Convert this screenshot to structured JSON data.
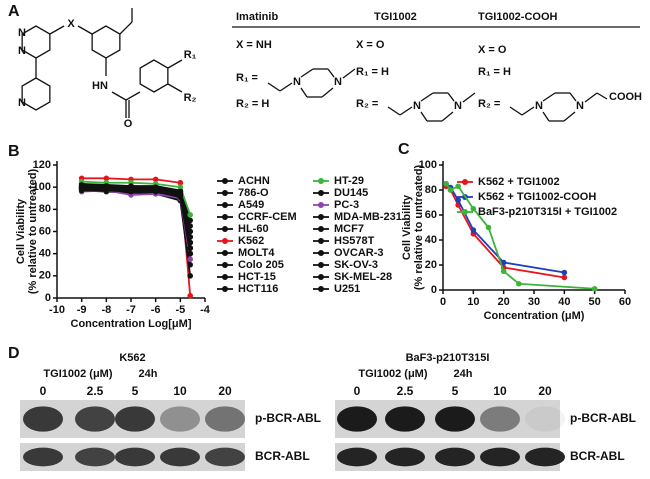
{
  "panel_labels": [
    "A",
    "B",
    "C",
    "D"
  ],
  "panel_a": {
    "scaffold": {
      "x": "X",
      "r1": "R₁",
      "r2": "R₂",
      "hn": "HN",
      "o": "O",
      "n_pyrimidine_1": "N",
      "n_pyrimidine_2": "N",
      "n_pyridine": "N"
    },
    "compounds": [
      {
        "name": "Imatinib",
        "x": "X = NH",
        "r1": "R₁ =",
        "r2": "R₂ = H",
        "atoms": [
          "N",
          "N"
        ]
      },
      {
        "name": "TGI1002",
        "x": "X = O",
        "r1": "R₁ = H",
        "r2": "R₂ =",
        "atoms": [
          "N",
          "N"
        ]
      },
      {
        "name": "TGI1002-COOH",
        "x": "X = O",
        "r1": "R₁ = H",
        "r2": "R₂ =",
        "atoms": [
          "N",
          "N",
          "COOH"
        ]
      }
    ]
  },
  "chart_data": [
    {
      "type": "line",
      "x_label": "Concentration Log[μM]",
      "y_label": [
        "Cell Viability",
        "(% relative to untreated)"
      ],
      "xlim": [
        -10,
        -4
      ],
      "xticks": [
        -10,
        -9,
        -8,
        -7,
        -6,
        -5,
        -4
      ],
      "ylim": [
        0,
        120
      ],
      "yticks": [
        0,
        20,
        40,
        60,
        80,
        100,
        120
      ],
      "legend": "right",
      "x": [
        -9,
        -8,
        -7,
        -6,
        -5,
        -4.6
      ],
      "series": [
        {
          "name": "ACHN",
          "color": "#111111",
          "values": [
            100,
            101,
            100,
            99,
            95,
            60
          ]
        },
        {
          "name": "786-O",
          "color": "#111111",
          "values": [
            99,
            98,
            97,
            98,
            93,
            50
          ]
        },
        {
          "name": "A549",
          "color": "#111111",
          "values": [
            102,
            101,
            100,
            100,
            96,
            65
          ]
        },
        {
          "name": "CCRF-CEM",
          "color": "#111111",
          "values": [
            98,
            97,
            96,
            95,
            88,
            30
          ]
        },
        {
          "name": "HL-60",
          "color": "#111111",
          "values": [
            100,
            99,
            98,
            97,
            90,
            40
          ]
        },
        {
          "name": "K562",
          "color": "#e8141c",
          "values": [
            108,
            108,
            107,
            107,
            104,
            2
          ]
        },
        {
          "name": "MOLT4",
          "color": "#111111",
          "values": [
            97,
            96,
            95,
            94,
            88,
            20
          ]
        },
        {
          "name": "Colo 205",
          "color": "#111111",
          "values": [
            101,
            100,
            99,
            99,
            95,
            45
          ]
        },
        {
          "name": "HCT-15",
          "color": "#111111",
          "values": [
            103,
            102,
            101,
            101,
            97,
            70
          ]
        },
        {
          "name": "HCT116",
          "color": "#111111",
          "values": [
            100,
            100,
            99,
            98,
            94,
            55
          ]
        },
        {
          "name": "HT-29",
          "color": "#3cb43c",
          "values": [
            105,
            104,
            104,
            103,
            100,
            75
          ]
        },
        {
          "name": "DU145",
          "color": "#111111",
          "values": [
            99,
            99,
            98,
            98,
            93,
            40
          ]
        },
        {
          "name": "PC-3",
          "color": "#8e44ad",
          "values": [
            96,
            97,
            93,
            94,
            90,
            35
          ]
        },
        {
          "name": "MDA-MB-231",
          "color": "#111111",
          "values": [
            100,
            101,
            100,
            99,
            95,
            50
          ]
        },
        {
          "name": "MCF7",
          "color": "#111111",
          "values": [
            98,
            98,
            97,
            96,
            92,
            45
          ]
        },
        {
          "name": "HS578T",
          "color": "#111111",
          "values": [
            101,
            100,
            100,
            99,
            96,
            60
          ]
        },
        {
          "name": "OVCAR-3",
          "color": "#111111",
          "values": [
            99,
            100,
            99,
            98,
            94,
            50
          ]
        },
        {
          "name": "SK-OV-3",
          "color": "#111111",
          "values": [
            102,
            101,
            101,
            100,
            96,
            55
          ]
        },
        {
          "name": "SK-MEL-28",
          "color": "#111111",
          "values": [
            100,
            99,
            99,
            98,
            93,
            45
          ]
        },
        {
          "name": "U251",
          "color": "#111111",
          "values": [
            97,
            97,
            96,
            96,
            91,
            40
          ]
        }
      ]
    },
    {
      "type": "line",
      "x_label": "Concentration (μM)",
      "y_label": [
        "Cell Viability",
        "(% relative to untreated)"
      ],
      "xlim": [
        0,
        60
      ],
      "xticks": [
        0,
        10,
        20,
        30,
        40,
        50,
        60
      ],
      "ylim": [
        0,
        100
      ],
      "yticks": [
        0,
        20,
        40,
        60,
        80,
        100
      ],
      "legend": "upper right",
      "series": [
        {
          "name": "K562 + TGI1002",
          "color": "#e8141c",
          "x": [
            1,
            2.5,
            5,
            10,
            20,
            40
          ],
          "values": [
            83,
            80,
            68,
            45,
            18,
            10
          ]
        },
        {
          "name": "K562 + TGI1002-COOH",
          "color": "#1f3fbf",
          "x": [
            1,
            2.5,
            5,
            10,
            20,
            40
          ],
          "values": [
            85,
            82,
            72,
            48,
            22,
            14
          ]
        },
        {
          "name": "BaF3-p210T315I + TGI1002",
          "color": "#3cb43c",
          "x": [
            1,
            2.5,
            5,
            10,
            15,
            20,
            25,
            50
          ],
          "values": [
            85,
            80,
            83,
            65,
            50,
            15,
            5,
            1
          ]
        }
      ]
    }
  ],
  "panel_d": {
    "blots": [
      {
        "title": "K562",
        "treatment": "TGI1002 (μM)",
        "time": "24h",
        "lanes": [
          "0",
          "2.5",
          "5",
          "10",
          "20"
        ],
        "rows": [
          "p-BCR-ABL",
          "BCR-ABL"
        ]
      },
      {
        "title": "BaF3-p210T315I",
        "treatment": "TGI1002 (μM)",
        "time": "24h",
        "lanes": [
          "0",
          "2.5",
          "5",
          "10",
          "20"
        ],
        "rows": [
          "p-BCR-ABL",
          "BCR-ABL"
        ]
      }
    ]
  }
}
